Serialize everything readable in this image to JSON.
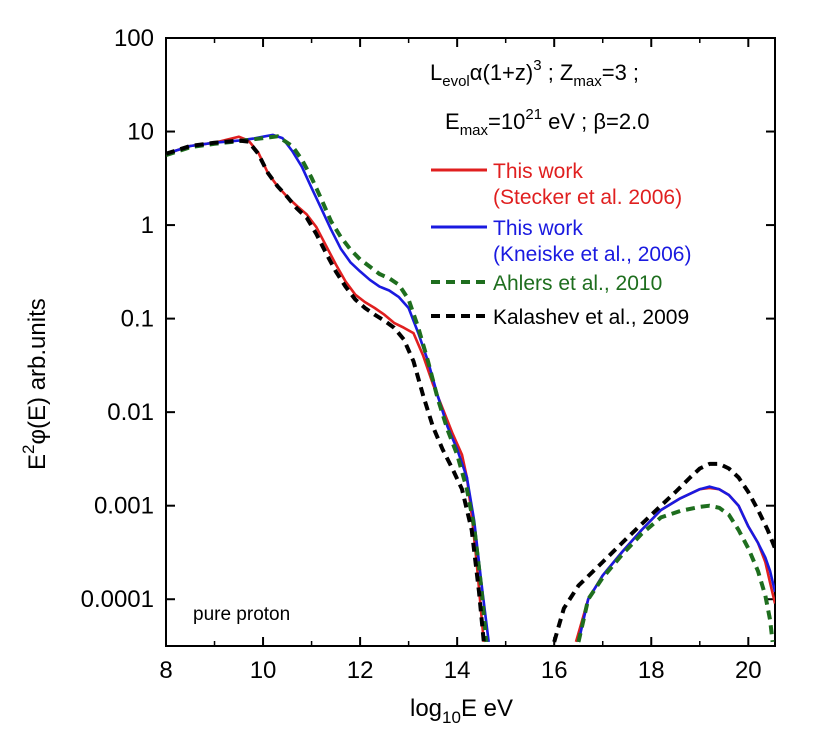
{
  "chart_data": {
    "type": "line",
    "xlabel": {
      "pre": "log",
      "sub": "10",
      "post": "E eV"
    },
    "ylabel": {
      "pre": "E",
      "sup": "2",
      "post": "φ(E) arb.units"
    },
    "xlim": [
      8,
      20.55
    ],
    "ylim_log10": [
      -4.5,
      2
    ],
    "x_ticks": [
      {
        "value": 8,
        "label": "8"
      },
      {
        "value": 10,
        "label": "10"
      },
      {
        "value": 12,
        "label": "12"
      },
      {
        "value": 14,
        "label": "14"
      },
      {
        "value": 16,
        "label": "16"
      },
      {
        "value": 18,
        "label": "18"
      },
      {
        "value": 20,
        "label": "20"
      }
    ],
    "y_ticks": [
      {
        "exp": 2,
        "label": "100"
      },
      {
        "exp": 1,
        "label": "10"
      },
      {
        "exp": 0,
        "label": "1"
      },
      {
        "exp": -1,
        "label": "0.1"
      },
      {
        "exp": -2,
        "label": "0.01"
      },
      {
        "exp": -3,
        "label": "0.001"
      },
      {
        "exp": -4,
        "label": "0.0001"
      }
    ],
    "annotations": {
      "line1": {
        "L": "L",
        "evol": "evol",
        "alpha": "α(1+z)",
        "cube": "3",
        "sep": " ; Z",
        "max": "max",
        "tail": "=3 ;"
      },
      "line2": {
        "E": "E",
        "max": "max",
        "eq": "=10",
        "exp": "21",
        "tail": " eV ; β=2.0"
      },
      "composition": "pure proton"
    },
    "legend": [
      {
        "label": "This work",
        "sublabel": "(Stecker et al. 2006)",
        "color": "#e01f1f",
        "dash": "solid"
      },
      {
        "label": "This work",
        "sublabel": "(Kneiske et al., 2006)",
        "color": "#1a1ae0",
        "dash": "solid"
      },
      {
        "label": "Ahlers et al., 2010",
        "color": "#1e6e1e",
        "dash": "dashed"
      },
      {
        "label": "Kalashev et al., 2009",
        "color": "#000000",
        "dash": "dashed"
      }
    ],
    "series": [
      {
        "name": "This work (Stecker et al. 2006)",
        "color": "#e01f1f",
        "dash": "solid",
        "segments": [
          [
            [
              8.0,
              5.8
            ],
            [
              8.5,
              7.0
            ],
            [
              9.0,
              7.6
            ],
            [
              9.3,
              8.3
            ],
            [
              9.5,
              8.8
            ],
            [
              9.7,
              8.0
            ],
            [
              9.9,
              6.0
            ],
            [
              10.1,
              3.6
            ],
            [
              10.3,
              2.6
            ],
            [
              10.5,
              2.0
            ],
            [
              10.7,
              1.6
            ],
            [
              10.9,
              1.3
            ],
            [
              11.1,
              0.95
            ],
            [
              11.3,
              0.6
            ],
            [
              11.5,
              0.38
            ],
            [
              11.7,
              0.25
            ],
            [
              11.9,
              0.18
            ],
            [
              12.1,
              0.15
            ],
            [
              12.3,
              0.13
            ],
            [
              12.5,
              0.11
            ],
            [
              12.7,
              0.09
            ],
            [
              12.9,
              0.08
            ],
            [
              13.1,
              0.07
            ],
            [
              13.3,
              0.04
            ],
            [
              13.5,
              0.02
            ],
            [
              13.7,
              0.011
            ],
            [
              13.9,
              0.006
            ],
            [
              14.1,
              0.0035
            ],
            [
              14.2,
              0.002
            ],
            [
              14.3,
              0.0008
            ],
            [
              14.4,
              0.00025
            ],
            [
              14.55,
              3.5e-05
            ]
          ],
          [
            [
              16.45,
              3.5e-05
            ],
            [
              16.7,
              0.0001
            ],
            [
              17.0,
              0.00018
            ],
            [
              17.4,
              0.00032
            ],
            [
              17.8,
              0.00055
            ],
            [
              18.2,
              0.0009
            ],
            [
              18.6,
              0.0012
            ],
            [
              19.0,
              0.0015
            ],
            [
              19.2,
              0.00155
            ],
            [
              19.4,
              0.0015
            ],
            [
              19.6,
              0.0013
            ],
            [
              19.8,
              0.001
            ],
            [
              20.0,
              0.0006
            ],
            [
              20.2,
              0.0004
            ],
            [
              20.35,
              0.00025
            ],
            [
              20.45,
              0.00015
            ],
            [
              20.55,
              9e-05
            ]
          ]
        ]
      },
      {
        "name": "This work (Kneiske et al., 2006)",
        "color": "#1a1ae0",
        "dash": "solid",
        "segments": [
          [
            [
              8.0,
              5.8
            ],
            [
              8.5,
              7.0
            ],
            [
              9.0,
              7.6
            ],
            [
              9.5,
              8.0
            ],
            [
              9.8,
              8.4
            ],
            [
              10.0,
              8.8
            ],
            [
              10.2,
              9.2
            ],
            [
              10.4,
              8.5
            ],
            [
              10.6,
              6.2
            ],
            [
              10.8,
              4.2
            ],
            [
              11.0,
              2.5
            ],
            [
              11.2,
              1.5
            ],
            [
              11.4,
              0.9
            ],
            [
              11.6,
              0.56
            ],
            [
              11.8,
              0.4
            ],
            [
              12.0,
              0.32
            ],
            [
              12.2,
              0.26
            ],
            [
              12.4,
              0.22
            ],
            [
              12.6,
              0.2
            ],
            [
              12.8,
              0.17
            ],
            [
              13.0,
              0.13
            ],
            [
              13.2,
              0.07
            ],
            [
              13.4,
              0.035
            ],
            [
              13.6,
              0.015
            ],
            [
              13.8,
              0.007
            ],
            [
              14.0,
              0.004
            ],
            [
              14.2,
              0.002
            ],
            [
              14.35,
              0.0007
            ],
            [
              14.5,
              0.00015
            ],
            [
              14.65,
              3.5e-05
            ]
          ],
          [
            [
              16.5,
              3.5e-05
            ],
            [
              16.7,
              0.0001
            ],
            [
              17.0,
              0.00018
            ],
            [
              17.4,
              0.00032
            ],
            [
              17.8,
              0.00055
            ],
            [
              18.2,
              0.0009
            ],
            [
              18.6,
              0.0012
            ],
            [
              19.0,
              0.0015
            ],
            [
              19.2,
              0.0016
            ],
            [
              19.4,
              0.0015
            ],
            [
              19.6,
              0.0013
            ],
            [
              19.8,
              0.001
            ],
            [
              20.0,
              0.0006
            ],
            [
              20.2,
              0.0004
            ],
            [
              20.35,
              0.00028
            ],
            [
              20.45,
              0.0002
            ],
            [
              20.55,
              0.00012
            ]
          ]
        ]
      },
      {
        "name": "Ahlers et al., 2010",
        "color": "#1e6e1e",
        "dash": "dashed",
        "segments": [
          [
            [
              8.0,
              5.6
            ],
            [
              8.5,
              6.8
            ],
            [
              9.0,
              7.4
            ],
            [
              9.5,
              7.9
            ],
            [
              10.0,
              8.5
            ],
            [
              10.3,
              8.9
            ],
            [
              10.6,
              7.0
            ],
            [
              10.8,
              5.0
            ],
            [
              11.0,
              3.2
            ],
            [
              11.2,
              1.9
            ],
            [
              11.4,
              1.1
            ],
            [
              11.6,
              0.75
            ],
            [
              11.8,
              0.55
            ],
            [
              12.0,
              0.43
            ],
            [
              12.2,
              0.36
            ],
            [
              12.4,
              0.3
            ],
            [
              12.6,
              0.27
            ],
            [
              12.8,
              0.23
            ],
            [
              13.0,
              0.16
            ],
            [
              13.2,
              0.08
            ],
            [
              13.4,
              0.035
            ],
            [
              13.6,
              0.014
            ],
            [
              13.8,
              0.0065
            ],
            [
              14.0,
              0.0035
            ],
            [
              14.2,
              0.0015
            ],
            [
              14.35,
              0.0006
            ],
            [
              14.5,
              0.00013
            ],
            [
              14.6,
              3.5e-05
            ]
          ],
          [
            [
              16.5,
              3.5e-05
            ],
            [
              16.7,
              0.0001
            ],
            [
              17.0,
              0.00017
            ],
            [
              17.4,
              0.0003
            ],
            [
              17.8,
              0.0005
            ],
            [
              18.2,
              0.00075
            ],
            [
              18.6,
              0.00088
            ],
            [
              19.0,
              0.00097
            ],
            [
              19.2,
              0.001
            ],
            [
              19.4,
              0.00095
            ],
            [
              19.6,
              0.0008
            ],
            [
              19.8,
              0.00055
            ],
            [
              20.0,
              0.00035
            ],
            [
              20.2,
              0.0002
            ],
            [
              20.35,
              0.00011
            ],
            [
              20.45,
              6e-05
            ],
            [
              20.5,
              3.5e-05
            ]
          ]
        ]
      },
      {
        "name": "Kalashev et al., 2009",
        "color": "#000000",
        "dash": "dashed",
        "segments": [
          [
            [
              8.0,
              5.8
            ],
            [
              8.5,
              7.0
            ],
            [
              9.0,
              7.6
            ],
            [
              9.5,
              8.0
            ],
            [
              9.7,
              7.8
            ],
            [
              9.9,
              5.8
            ],
            [
              10.1,
              3.6
            ],
            [
              10.3,
              2.6
            ],
            [
              10.5,
              2.0
            ],
            [
              10.7,
              1.5
            ],
            [
              10.9,
              1.2
            ],
            [
              11.1,
              0.8
            ],
            [
              11.3,
              0.5
            ],
            [
              11.5,
              0.32
            ],
            [
              11.7,
              0.22
            ],
            [
              11.9,
              0.16
            ],
            [
              12.1,
              0.13
            ],
            [
              12.3,
              0.11
            ],
            [
              12.5,
              0.095
            ],
            [
              12.7,
              0.08
            ],
            [
              12.9,
              0.06
            ],
            [
              13.1,
              0.035
            ],
            [
              13.3,
              0.015
            ],
            [
              13.5,
              0.007
            ],
            [
              13.7,
              0.004
            ],
            [
              13.9,
              0.0025
            ],
            [
              14.1,
              0.0015
            ],
            [
              14.3,
              0.00055
            ],
            [
              14.45,
              0.00012
            ],
            [
              14.55,
              3.5e-05
            ]
          ],
          [
            [
              16.0,
              3.5e-05
            ],
            [
              16.2,
              8e-05
            ],
            [
              16.5,
              0.00014
            ],
            [
              17.0,
              0.00025
            ],
            [
              17.5,
              0.00045
            ],
            [
              18.0,
              0.0008
            ],
            [
              18.5,
              0.0014
            ],
            [
              18.8,
              0.002
            ],
            [
              19.0,
              0.0025
            ],
            [
              19.2,
              0.0028
            ],
            [
              19.4,
              0.0028
            ],
            [
              19.6,
              0.0025
            ],
            [
              19.8,
              0.002
            ],
            [
              20.0,
              0.0014
            ],
            [
              20.2,
              0.0009
            ],
            [
              20.4,
              0.00055
            ],
            [
              20.55,
              0.00035
            ]
          ]
        ]
      }
    ]
  }
}
